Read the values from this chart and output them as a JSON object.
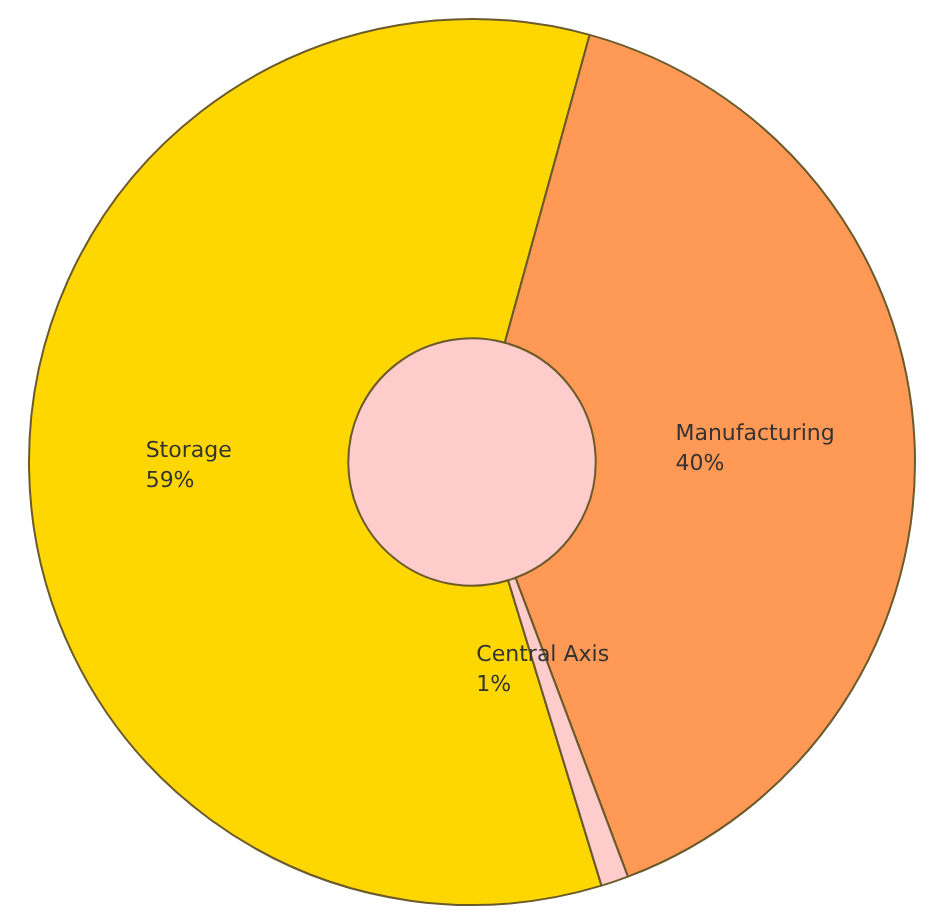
{
  "chart_data": {
    "type": "donut",
    "categories": [
      "Storage",
      "Manufacturing",
      "Central Axis"
    ],
    "values": [
      59,
      40,
      1
    ],
    "value_labels": [
      "59%",
      "40%",
      "1%"
    ],
    "colors": [
      "#ffd700",
      "#ff9955",
      "#ffcccc"
    ],
    "legend": false
  }
}
